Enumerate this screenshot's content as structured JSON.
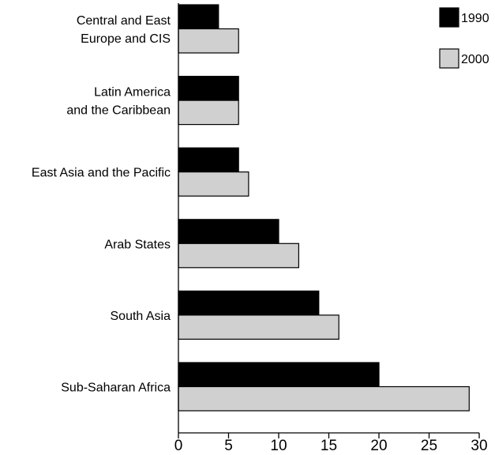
{
  "chart_data": {
    "type": "bar",
    "orientation": "horizontal",
    "categories": [
      [
        "Central and East",
        "Europe and CIS"
      ],
      [
        "Latin America",
        "and the Caribbean"
      ],
      [
        "East Asia and the Pacific"
      ],
      [
        "Arab States"
      ],
      [
        "South Asia"
      ],
      [
        "Sub-Saharan Africa"
      ]
    ],
    "series": [
      {
        "name": "1990",
        "values": [
          4,
          6,
          6,
          10,
          14,
          20
        ],
        "color": "#000000"
      },
      {
        "name": "2000",
        "values": [
          6,
          6,
          7,
          12,
          16,
          29
        ],
        "color": "#d0d0d0"
      }
    ],
    "xlim": [
      0,
      30
    ],
    "xticks": [
      "0",
      "5",
      "10",
      "15",
      "20",
      "25",
      "30"
    ],
    "title": "",
    "xlabel": "",
    "ylabel": "",
    "grid": false,
    "legend_position": "top-right"
  }
}
